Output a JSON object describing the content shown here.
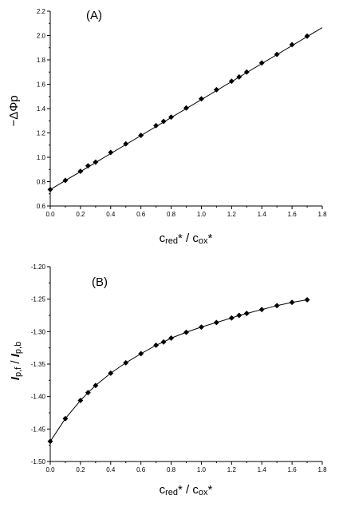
{
  "chart_data": [
    {
      "type": "line",
      "panel_label": "(A)",
      "ylabel": "−ΔΦp",
      "xlabel": {
        "main1": "c",
        "sub1": "red",
        "mid": "* / ",
        "main2": "c",
        "sub2": "ox",
        "end": "*"
      },
      "xlim": [
        0.0,
        1.8
      ],
      "ylim": [
        0.6,
        2.2
      ],
      "xticks": [
        "0.0",
        "0.2",
        "0.4",
        "0.6",
        "0.8",
        "1.0",
        "1.2",
        "1.4",
        "1.6",
        "1.8"
      ],
      "yticks": [
        "0.6",
        "0.8",
        "1.0",
        "1.2",
        "1.4",
        "1.6",
        "1.8",
        "2.0",
        "2.2"
      ],
      "grid": false,
      "series": [
        {
          "x": [
            0.0,
            0.1,
            0.2,
            0.25,
            0.3,
            0.4,
            0.5,
            0.6,
            0.7,
            0.75,
            0.8,
            0.9,
            1.0,
            1.1,
            1.2,
            1.25,
            1.3,
            1.4,
            1.5,
            1.6,
            1.7
          ],
          "y": [
            0.735,
            0.81,
            0.885,
            0.93,
            0.96,
            1.04,
            1.11,
            1.18,
            1.26,
            1.295,
            1.33,
            1.405,
            1.48,
            1.555,
            1.625,
            1.66,
            1.7,
            1.775,
            1.845,
            1.925,
            1.995
          ]
        }
      ],
      "fit_line": {
        "x": [
          0.0,
          1.8
        ],
        "y": [
          0.735,
          2.065
        ]
      }
    },
    {
      "type": "line",
      "panel_label": "(B)",
      "ylabel": {
        "main1": "I",
        "sub1": "p,f",
        "mid": " / ",
        "main2": "I",
        "sub2": "p,b"
      },
      "xlabel": {
        "main1": "c",
        "sub1": "red",
        "mid": "* / ",
        "main2": "c",
        "sub2": "ox",
        "end": "*"
      },
      "xlim": [
        0.0,
        1.8
      ],
      "ylim": [
        -1.5,
        -1.2
      ],
      "xticks": [
        "0.0",
        "0.2",
        "0.4",
        "0.6",
        "0.8",
        "1.0",
        "1.2",
        "1.4",
        "1.6",
        "1.8"
      ],
      "yticks": [
        "-1.20",
        "-1.25",
        "-1.30",
        "-1.35",
        "-1.40",
        "-1.45",
        "-1.50"
      ],
      "grid": false,
      "series": [
        {
          "x": [
            0.0,
            0.1,
            0.2,
            0.25,
            0.3,
            0.4,
            0.5,
            0.6,
            0.7,
            0.75,
            0.8,
            0.9,
            1.0,
            1.1,
            1.2,
            1.25,
            1.3,
            1.4,
            1.5,
            1.6,
            1.7
          ],
          "y": [
            -1.469,
            -1.434,
            -1.406,
            -1.394,
            -1.383,
            -1.364,
            -1.348,
            -1.334,
            -1.321,
            -1.316,
            -1.31,
            -1.301,
            -1.293,
            -1.286,
            -1.279,
            -1.275,
            -1.272,
            -1.266,
            -1.26,
            -1.255,
            -1.251
          ]
        }
      ]
    }
  ]
}
